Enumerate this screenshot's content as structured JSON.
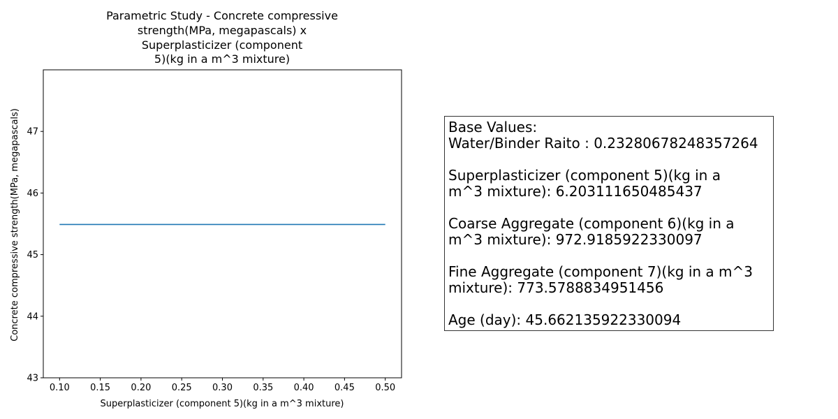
{
  "chart_data": {
    "type": "line",
    "title_lines": [
      "Parametric Study - Concrete compressive",
      "strength(MPa, megapascals)  x",
      "Superplasticizer (component",
      "5)(kg in a m^3 mixture)"
    ],
    "xlabel": "Superplasticizer (component 5)(kg in a m^3 mixture)",
    "ylabel": "Concrete compressive strength(MPa, megapascals)",
    "xlim": [
      0.08,
      0.52
    ],
    "ylim": [
      43.0,
      48.0
    ],
    "xticks": [
      0.1,
      0.15,
      0.2,
      0.25,
      0.3,
      0.35,
      0.4,
      0.45,
      0.5
    ],
    "xtick_labels": [
      "0.10",
      "0.15",
      "0.20",
      "0.25",
      "0.30",
      "0.35",
      "0.40",
      "0.45",
      "0.50"
    ],
    "yticks": [
      43,
      44,
      45,
      46,
      47
    ],
    "ytick_labels": [
      "43",
      "44",
      "45",
      "46",
      "47"
    ],
    "grid": false,
    "line_color": "#1f77b4",
    "series": [
      {
        "x": [
          0.1,
          0.5
        ],
        "y": [
          45.49,
          45.49
        ]
      }
    ]
  },
  "info_box": {
    "lines": [
      "Base Values:",
      "Water/Binder Raito : 0.23280678248357264",
      "",
      "Superplasticizer (component 5)(kg in a",
      "m^3 mixture): 6.203111650485437",
      "",
      "Coarse Aggregate  (component 6)(kg in a",
      "m^3 mixture): 972.9185922330097",
      "",
      "Fine Aggregate (component 7)(kg in a m^3",
      "mixture): 773.5788834951456",
      "",
      "Age (day): 45.662135922330094"
    ]
  }
}
